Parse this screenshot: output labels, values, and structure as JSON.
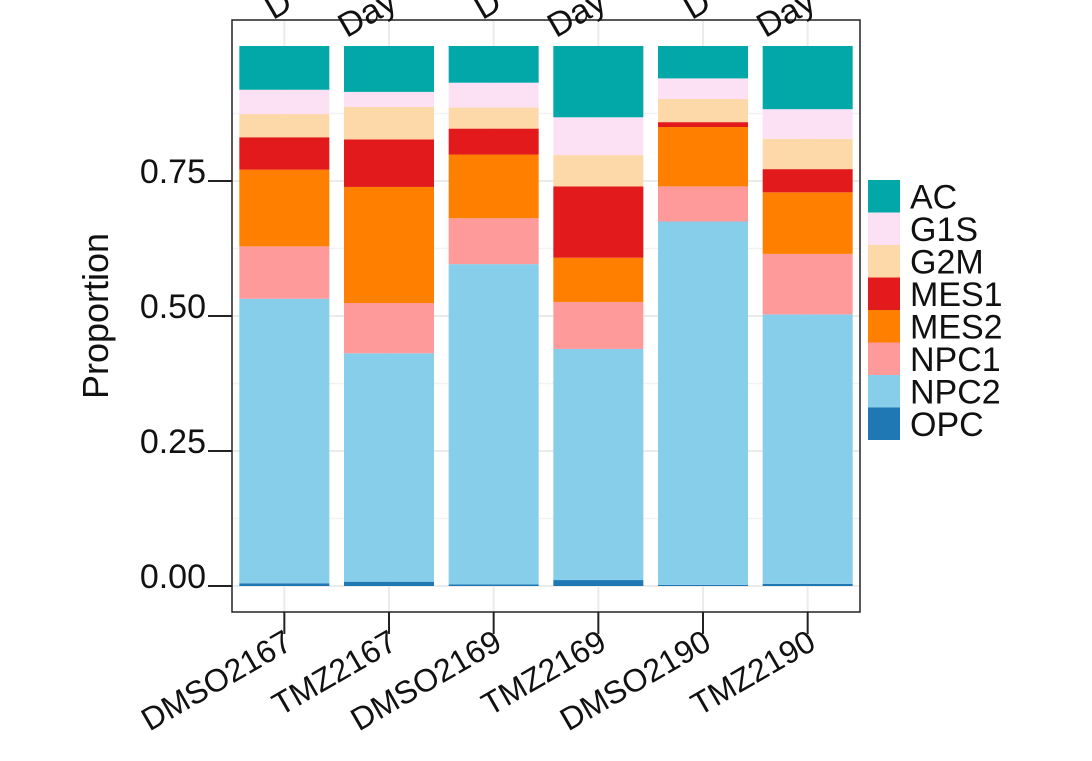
{
  "chart_data": {
    "type": "bar",
    "stacked": true,
    "title": "",
    "xlabel": "",
    "ylabel": "Proportion",
    "ylim": [
      0,
      1
    ],
    "yticks": [
      0.0,
      0.25,
      0.5,
      0.75
    ],
    "ytick_labels": [
      "0.00",
      "0.25",
      "0.50",
      "0.75"
    ],
    "grid": true,
    "legend_position": "right",
    "categories": [
      "DMSO2167",
      "TMZ2167",
      "DMSO2169",
      "TMZ2169",
      "DMSO2190",
      "TMZ2190"
    ],
    "top_partial_labels": [
      "D",
      "Day",
      "D",
      "Day",
      "D",
      "Day"
    ],
    "series": [
      {
        "name": "OPC",
        "color": "#1F77B4",
        "values": [
          0.005,
          0.008,
          0.003,
          0.011,
          0.002,
          0.004
        ]
      },
      {
        "name": "NPC2",
        "color": "#87CEEB",
        "values": [
          0.527,
          0.423,
          0.593,
          0.428,
          0.673,
          0.499
        ]
      },
      {
        "name": "NPC1",
        "color": "#FE9A9A",
        "values": [
          0.097,
          0.093,
          0.085,
          0.087,
          0.065,
          0.112
        ]
      },
      {
        "name": "MES2",
        "color": "#FF7F00",
        "values": [
          0.142,
          0.215,
          0.118,
          0.082,
          0.11,
          0.114
        ]
      },
      {
        "name": "MES1",
        "color": "#E31A1C",
        "values": [
          0.06,
          0.088,
          0.048,
          0.132,
          0.009,
          0.043
        ]
      },
      {
        "name": "G2M",
        "color": "#FDD9A9",
        "values": [
          0.043,
          0.06,
          0.039,
          0.058,
          0.043,
          0.056
        ]
      },
      {
        "name": "G1S",
        "color": "#FCE1F4",
        "values": [
          0.045,
          0.028,
          0.046,
          0.07,
          0.038,
          0.055
        ]
      },
      {
        "name": "AC",
        "color": "#02A8A8",
        "values": [
          0.081,
          0.085,
          0.068,
          0.132,
          0.06,
          0.117
        ]
      }
    ],
    "legend_order": [
      "AC",
      "G1S",
      "G2M",
      "MES1",
      "MES2",
      "NPC1",
      "NPC2",
      "OPC"
    ]
  }
}
